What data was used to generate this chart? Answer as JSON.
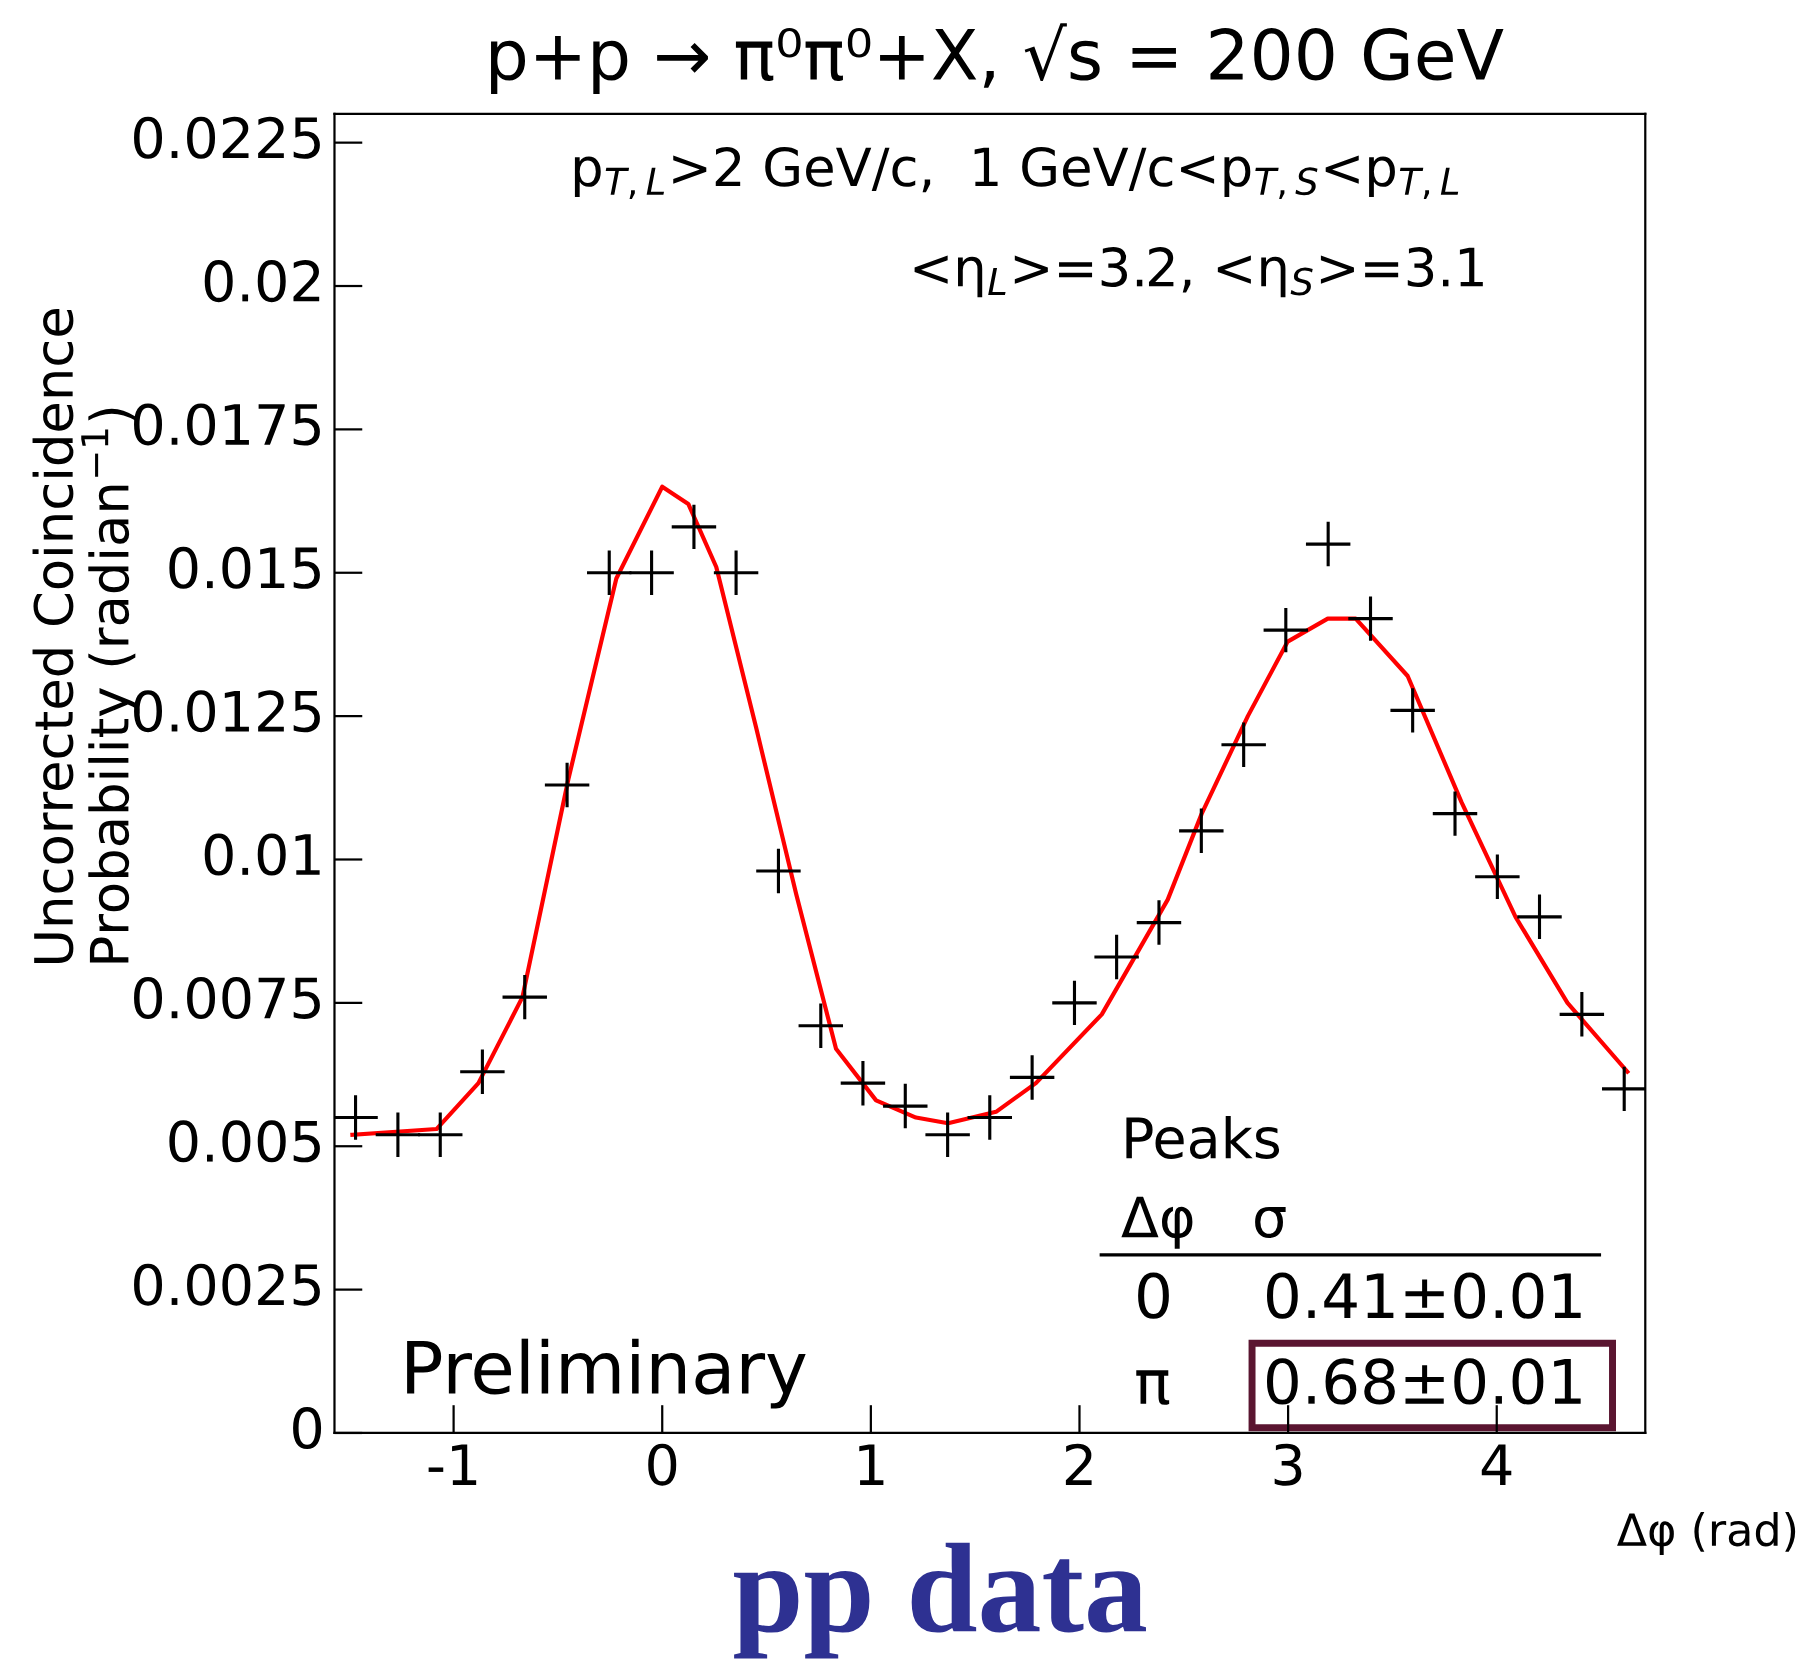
{
  "chart_data": {
    "type": "scatter",
    "title": "p+p → π⁰π⁰+X, √s = 200 GeV",
    "xlabel": "Δφ (rad)",
    "ylabel": "Uncorrected Coincidence\nProbability (radian$^{−1}$)",
    "annotations": [
      "p$_{T,L}$>2 GeV/c,  1 GeV/c<p$_{T,S}$<p$_{T,L}$",
      "<η$_{L}$>=3.2, <η$_{S}$>=3.1",
      "Preliminary",
      "Peaks",
      "Δφ",
      "σ",
      "0",
      "0.41±0.01",
      "π",
      "0.68±0.01",
      "pp data"
    ],
    "xlim": [
      -1.571,
      4.712
    ],
    "xticks": [
      -1,
      0,
      1,
      2,
      3,
      4
    ],
    "ylim": [
      0,
      0.023
    ],
    "yticks": [
      0,
      0.0025,
      0.005,
      0.0075,
      0.01,
      0.0125,
      0.015,
      0.0175,
      0.02,
      0.0225
    ],
    "grid": false,
    "legend": false,
    "series": [
      {
        "marker": "cross",
        "color": "#000000",
        "x": [
          -1.47,
          -1.267,
          -1.064,
          -0.862,
          -0.659,
          -0.456,
          -0.254,
          -0.051,
          0.152,
          0.354,
          0.557,
          0.76,
          0.962,
          1.165,
          1.368,
          1.57,
          1.773,
          1.976,
          2.178,
          2.381,
          2.584,
          2.787,
          2.989,
          3.192,
          3.395,
          3.597,
          3.8,
          4.003,
          4.205,
          4.408,
          4.611
        ],
        "values": [
          0.0055,
          0.0052,
          0.0052,
          0.0063,
          0.0076,
          0.0113,
          0.015,
          0.015,
          0.0158,
          0.015,
          0.0098,
          0.0071,
          0.0061,
          0.0057,
          0.0052,
          0.0055,
          0.0062,
          0.0075,
          0.0083,
          0.0089,
          0.0105,
          0.012,
          0.014,
          0.0155,
          0.0142,
          0.0126,
          0.0108,
          0.0097,
          0.009,
          0.0073,
          0.006
        ]
      },
      {
        "type": "line",
        "line_style": "solid",
        "color": "#ff0000",
        "x": [
          -1.485,
          -1.082,
          -0.881,
          -0.67,
          -0.45,
          -0.22,
          0.0,
          0.125,
          0.259,
          0.45,
          0.642,
          0.833,
          1.025,
          1.216,
          1.37,
          1.6,
          1.791,
          2.107,
          2.423,
          2.586,
          2.807,
          2.998,
          3.19,
          3.324,
          3.573,
          3.831,
          4.09,
          4.339,
          4.626
        ],
        "values": [
          0.0052,
          0.0053,
          0.0061,
          0.0076,
          0.0114,
          0.0149,
          0.0165,
          0.0162,
          0.0151,
          0.0123,
          0.0094,
          0.0067,
          0.0058,
          0.0055,
          0.0054,
          0.0056,
          0.0061,
          0.0073,
          0.0093,
          0.0108,
          0.0125,
          0.0138,
          0.0142,
          0.0142,
          0.0132,
          0.011,
          0.009,
          0.0075,
          0.0063
        ]
      }
    ]
  }
}
